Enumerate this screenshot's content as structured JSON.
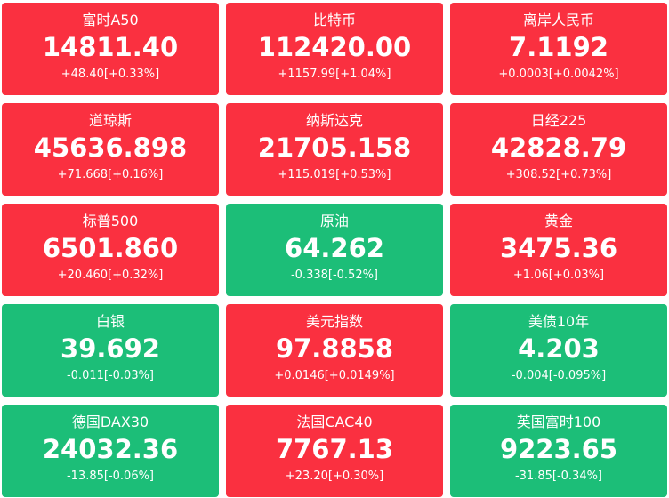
{
  "colors": {
    "up": "#fa3040",
    "down": "#1cbe78",
    "text": "#ffffff"
  },
  "tiles": [
    {
      "name": "富时A50",
      "price": "14811.40",
      "change": "+48.40[+0.33%]",
      "trend": "up"
    },
    {
      "name": "比特币",
      "price": "112420.00",
      "change": "+1157.99[+1.04%]",
      "trend": "up"
    },
    {
      "name": "离岸人民币",
      "price": "7.1192",
      "change": "+0.0003[+0.0042%]",
      "trend": "up"
    },
    {
      "name": "道琼斯",
      "price": "45636.898",
      "change": "+71.668[+0.16%]",
      "trend": "up"
    },
    {
      "name": "纳斯达克",
      "price": "21705.158",
      "change": "+115.019[+0.53%]",
      "trend": "up"
    },
    {
      "name": "日经225",
      "price": "42828.79",
      "change": "+308.52[+0.73%]",
      "trend": "up"
    },
    {
      "name": "标普500",
      "price": "6501.860",
      "change": "+20.460[+0.32%]",
      "trend": "up"
    },
    {
      "name": "原油",
      "price": "64.262",
      "change": "-0.338[-0.52%]",
      "trend": "down"
    },
    {
      "name": "黄金",
      "price": "3475.36",
      "change": "+1.06[+0.03%]",
      "trend": "up"
    },
    {
      "name": "白银",
      "price": "39.692",
      "change": "-0.011[-0.03%]",
      "trend": "down"
    },
    {
      "name": "美元指数",
      "price": "97.8858",
      "change": "+0.0146[+0.0149%]",
      "trend": "up"
    },
    {
      "name": "美债10年",
      "price": "4.203",
      "change": "-0.004[-0.095%]",
      "trend": "down"
    },
    {
      "name": "德国DAX30",
      "price": "24032.36",
      "change": "-13.85[-0.06%]",
      "trend": "down"
    },
    {
      "name": "法国CAC40",
      "price": "7767.13",
      "change": "+23.20[+0.30%]",
      "trend": "up"
    },
    {
      "name": "英国富时100",
      "price": "9223.65",
      "change": "-31.85[-0.34%]",
      "trend": "down"
    }
  ]
}
